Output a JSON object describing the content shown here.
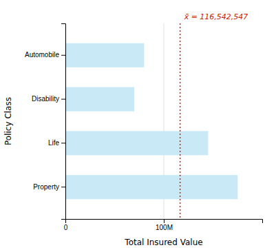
{
  "chart_data": {
    "type": "bar",
    "orientation": "horizontal",
    "categories": [
      "Property",
      "Life",
      "Disability",
      "Automobile"
    ],
    "values": [
      175000000,
      145000000,
      70000000,
      80000000
    ],
    "color": "#c8e9f5",
    "x_label": "Total Insured Value",
    "y_label": "Policy Class",
    "xlim": [
      0,
      200000000
    ],
    "xticks": [
      0,
      {
        "value": 100000000,
        "label": "100M"
      }
    ],
    "grid": true,
    "annotations": [
      {
        "text": "x̄ = 116,542,547",
        "value": 116542547,
        "color": "#cc2200"
      }
    ]
  }
}
